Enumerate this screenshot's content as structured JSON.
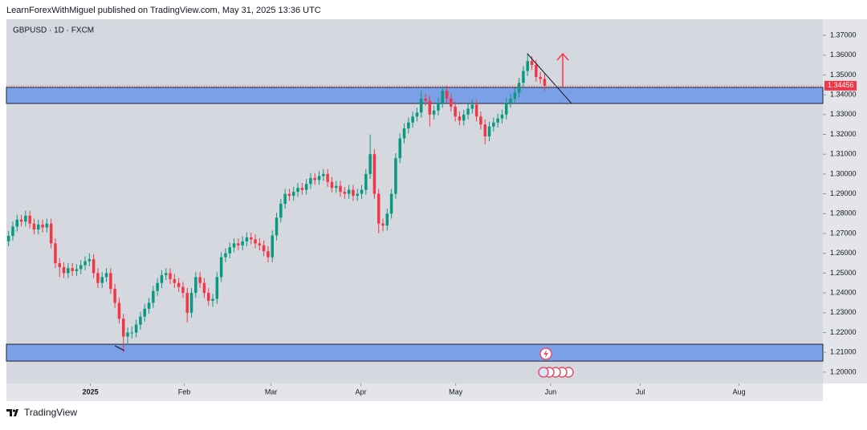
{
  "header": {
    "published": "LearnForexWithMiguel published on TradingView.com, May 31, 2025 13:36 UTC",
    "footer": "TradingView"
  },
  "chart_data": {
    "type": "candlestick",
    "title": "GBPUSD · 1D · FXCM",
    "up_color": "#089981",
    "down_color": "#f23645",
    "zone_color": "#7ba0e8",
    "last_price": 1.34456,
    "last_price_color": "#f23645",
    "zones": [
      {
        "top": 1.3437,
        "bottom": 1.3356
      },
      {
        "top": 1.2141,
        "bottom": 1.2056
      }
    ],
    "ylim": [
      1.1943,
      1.3781
    ],
    "yticks": [
      {
        "value": 1.2,
        "label": "1.20000"
      },
      {
        "value": 1.21,
        "label": "1.21000"
      },
      {
        "value": 1.22,
        "label": "1.22000"
      },
      {
        "value": 1.23,
        "label": "1.23000"
      },
      {
        "value": 1.24,
        "label": "1.24000"
      },
      {
        "value": 1.25,
        "label": "1.25000"
      },
      {
        "value": 1.26,
        "label": "1.26000"
      },
      {
        "value": 1.27,
        "label": "1.27000"
      },
      {
        "value": 1.28,
        "label": "1.28000"
      },
      {
        "value": 1.29,
        "label": "1.29000"
      },
      {
        "value": 1.3,
        "label": "1.30000"
      },
      {
        "value": 1.31,
        "label": "1.31000"
      },
      {
        "value": 1.32,
        "label": "1.32000"
      },
      {
        "value": 1.33,
        "label": "1.33000"
      },
      {
        "value": 1.34,
        "label": "1.34000"
      },
      {
        "value": 1.35,
        "label": "1.35000"
      },
      {
        "value": 1.36,
        "label": "1.36000"
      },
      {
        "value": 1.37,
        "label": "1.37000"
      }
    ],
    "xlim": [
      -0.5,
      191.4
    ],
    "xticks": [
      {
        "value": 19.25,
        "label": "2025"
      },
      {
        "value": 41.3,
        "label": "Feb"
      },
      {
        "value": 61.7,
        "label": "Mar"
      },
      {
        "value": 82.8,
        "label": "Apr"
      },
      {
        "value": 105.1,
        "label": "May"
      },
      {
        "value": 127.4,
        "label": "Jun"
      },
      {
        "value": 148.5,
        "label": "Jul"
      },
      {
        "value": 171.7,
        "label": "Aug"
      }
    ],
    "candles": [
      [
        1.266,
        1.2713,
        1.2635,
        1.2688
      ],
      [
        1.2688,
        1.276,
        1.2663,
        1.2735
      ],
      [
        1.2735,
        1.2795,
        1.271,
        1.277
      ],
      [
        1.277,
        1.2795,
        1.2735,
        1.276
      ],
      [
        1.276,
        1.2815,
        1.2735,
        1.279
      ],
      [
        1.279,
        1.2815,
        1.2725,
        1.275
      ],
      [
        1.275,
        1.2775,
        1.2695,
        1.272
      ],
      [
        1.272,
        1.277,
        1.2695,
        1.2745
      ],
      [
        1.2745,
        1.277,
        1.2705,
        1.273
      ],
      [
        1.273,
        1.2775,
        1.2705,
        1.275
      ],
      [
        1.275,
        1.2775,
        1.2625,
        1.265
      ],
      [
        1.265,
        1.2675,
        1.2525,
        1.255
      ],
      [
        1.255,
        1.2575,
        1.248,
        1.253
      ],
      [
        1.253,
        1.2555,
        1.2475,
        1.25
      ],
      [
        1.25,
        1.255,
        1.2475,
        1.2525
      ],
      [
        1.2525,
        1.255,
        1.2485,
        1.251
      ],
      [
        1.251,
        1.2545,
        1.2485,
        1.252
      ],
      [
        1.252,
        1.2565,
        1.2495,
        1.254
      ],
      [
        1.254,
        1.2585,
        1.2515,
        1.256
      ],
      [
        1.256,
        1.26,
        1.2535,
        1.257
      ],
      [
        1.257,
        1.2595,
        1.2475,
        1.25
      ],
      [
        1.25,
        1.2525,
        1.2425,
        1.245
      ],
      [
        1.245,
        1.2505,
        1.2425,
        1.248
      ],
      [
        1.248,
        1.2525,
        1.2455,
        1.25
      ],
      [
        1.25,
        1.2525,
        1.2395,
        1.242
      ],
      [
        1.242,
        1.2445,
        1.2325,
        1.235
      ],
      [
        1.235,
        1.2375,
        1.2245,
        1.227
      ],
      [
        1.227,
        1.2295,
        1.21,
        1.218
      ],
      [
        1.218,
        1.2225,
        1.214,
        1.22
      ],
      [
        1.22,
        1.223,
        1.217,
        1.22
      ],
      [
        1.22,
        1.2265,
        1.2175,
        1.224
      ],
      [
        1.224,
        1.2305,
        1.2215,
        1.228
      ],
      [
        1.228,
        1.2345,
        1.2255,
        1.232
      ],
      [
        1.232,
        1.2375,
        1.2295,
        1.235
      ],
      [
        1.235,
        1.2435,
        1.2325,
        1.241
      ],
      [
        1.241,
        1.2475,
        1.2385,
        1.245
      ],
      [
        1.245,
        1.2515,
        1.2425,
        1.249
      ],
      [
        1.249,
        1.2525,
        1.2465,
        1.25
      ],
      [
        1.25,
        1.2525,
        1.2445,
        1.247
      ],
      [
        1.247,
        1.2495,
        1.2425,
        1.245
      ],
      [
        1.245,
        1.2475,
        1.2405,
        1.243
      ],
      [
        1.243,
        1.2455,
        1.2375,
        1.24
      ],
      [
        1.24,
        1.2425,
        1.225,
        1.23
      ],
      [
        1.23,
        1.2425,
        1.2275,
        1.24
      ],
      [
        1.24,
        1.2505,
        1.2375,
        1.248
      ],
      [
        1.248,
        1.2505,
        1.2425,
        1.245
      ],
      [
        1.245,
        1.2475,
        1.2375,
        1.24
      ],
      [
        1.24,
        1.2425,
        1.2335,
        1.236
      ],
      [
        1.236,
        1.2395,
        1.233,
        1.237
      ],
      [
        1.237,
        1.2505,
        1.2345,
        1.248
      ],
      [
        1.248,
        1.2605,
        1.2455,
        1.258
      ],
      [
        1.258,
        1.2625,
        1.2555,
        1.26
      ],
      [
        1.26,
        1.2655,
        1.2575,
        1.263
      ],
      [
        1.263,
        1.2675,
        1.2605,
        1.265
      ],
      [
        1.265,
        1.2675,
        1.2615,
        1.264
      ],
      [
        1.264,
        1.2685,
        1.2615,
        1.266
      ],
      [
        1.266,
        1.2705,
        1.2635,
        1.268
      ],
      [
        1.268,
        1.2705,
        1.2645,
        1.267
      ],
      [
        1.267,
        1.2695,
        1.2625,
        1.265
      ],
      [
        1.265,
        1.2675,
        1.2615,
        1.264
      ],
      [
        1.264,
        1.2665,
        1.2585,
        1.261
      ],
      [
        1.261,
        1.2635,
        1.2555,
        1.258
      ],
      [
        1.258,
        1.2715,
        1.2555,
        1.269
      ],
      [
        1.269,
        1.2805,
        1.2665,
        1.278
      ],
      [
        1.278,
        1.2875,
        1.2755,
        1.285
      ],
      [
        1.285,
        1.2925,
        1.2825,
        1.29
      ],
      [
        1.29,
        1.2925,
        1.2865,
        1.289
      ],
      [
        1.289,
        1.2935,
        1.2865,
        1.291
      ],
      [
        1.291,
        1.2955,
        1.2885,
        1.293
      ],
      [
        1.293,
        1.2955,
        1.2895,
        1.292
      ],
      [
        1.292,
        1.2975,
        1.2895,
        1.295
      ],
      [
        1.295,
        1.3005,
        1.2925,
        1.298
      ],
      [
        1.298,
        1.3005,
        1.2945,
        1.297
      ],
      [
        1.297,
        1.3015,
        1.2945,
        1.299
      ],
      [
        1.299,
        1.3025,
        1.2965,
        1.3
      ],
      [
        1.3,
        1.3025,
        1.2935,
        1.296
      ],
      [
        1.296,
        1.2985,
        1.2905,
        1.293
      ],
      [
        1.293,
        1.2965,
        1.2905,
        1.294
      ],
      [
        1.294,
        1.2965,
        1.2885,
        1.291
      ],
      [
        1.291,
        1.2935,
        1.2875,
        1.29
      ],
      [
        1.29,
        1.2945,
        1.2875,
        1.292
      ],
      [
        1.292,
        1.2945,
        1.2865,
        1.289
      ],
      [
        1.289,
        1.2925,
        1.2865,
        1.29
      ],
      [
        1.29,
        1.2945,
        1.2875,
        1.292
      ],
      [
        1.292,
        1.3025,
        1.2895,
        1.3
      ],
      [
        1.3,
        1.32,
        1.2975,
        1.31
      ],
      [
        1.31,
        1.3125,
        1.2875,
        1.29
      ],
      [
        1.29,
        1.2925,
        1.27,
        1.275
      ],
      [
        1.275,
        1.2775,
        1.271,
        1.274
      ],
      [
        1.274,
        1.2825,
        1.2715,
        1.28
      ],
      [
        1.28,
        1.2925,
        1.2775,
        1.29
      ],
      [
        1.29,
        1.3105,
        1.2875,
        1.308
      ],
      [
        1.308,
        1.3205,
        1.3055,
        1.318
      ],
      [
        1.318,
        1.3255,
        1.3155,
        1.323
      ],
      [
        1.323,
        1.3285,
        1.3205,
        1.326
      ],
      [
        1.326,
        1.3315,
        1.3235,
        1.329
      ],
      [
        1.329,
        1.3335,
        1.3265,
        1.331
      ],
      [
        1.331,
        1.342,
        1.3285,
        1.338
      ],
      [
        1.338,
        1.3405,
        1.3345,
        1.337
      ],
      [
        1.337,
        1.3395,
        1.324,
        1.33
      ],
      [
        1.33,
        1.3345,
        1.3275,
        1.332
      ],
      [
        1.332,
        1.3385,
        1.3295,
        1.336
      ],
      [
        1.336,
        1.3443,
        1.3335,
        1.342
      ],
      [
        1.342,
        1.3445,
        1.3355,
        1.338
      ],
      [
        1.338,
        1.3405,
        1.3315,
        1.334
      ],
      [
        1.334,
        1.3365,
        1.3265,
        1.329
      ],
      [
        1.329,
        1.3315,
        1.3245,
        1.327
      ],
      [
        1.327,
        1.3325,
        1.3245,
        1.33
      ],
      [
        1.33,
        1.3355,
        1.3275,
        1.333
      ],
      [
        1.333,
        1.3375,
        1.3305,
        1.335
      ],
      [
        1.335,
        1.3375,
        1.3265,
        1.329
      ],
      [
        1.329,
        1.3315,
        1.3225,
        1.325
      ],
      [
        1.325,
        1.3275,
        1.315,
        1.319
      ],
      [
        1.319,
        1.3265,
        1.3165,
        1.324
      ],
      [
        1.324,
        1.3285,
        1.3215,
        1.326
      ],
      [
        1.326,
        1.3305,
        1.3235,
        1.328
      ],
      [
        1.328,
        1.3325,
        1.3255,
        1.33
      ],
      [
        1.33,
        1.3385,
        1.3275,
        1.336
      ],
      [
        1.336,
        1.3405,
        1.3335,
        1.338
      ],
      [
        1.338,
        1.3435,
        1.3355,
        1.341
      ],
      [
        1.341,
        1.3485,
        1.3385,
        1.346
      ],
      [
        1.346,
        1.3545,
        1.3435,
        1.352
      ],
      [
        1.352,
        1.361,
        1.3495,
        1.357
      ],
      [
        1.357,
        1.3595,
        1.3525,
        1.355
      ],
      [
        1.355,
        1.3575,
        1.3465,
        1.349
      ],
      [
        1.349,
        1.3515,
        1.3455,
        1.348
      ],
      [
        1.348,
        1.3505,
        1.342,
        1.34456
      ]
    ]
  }
}
